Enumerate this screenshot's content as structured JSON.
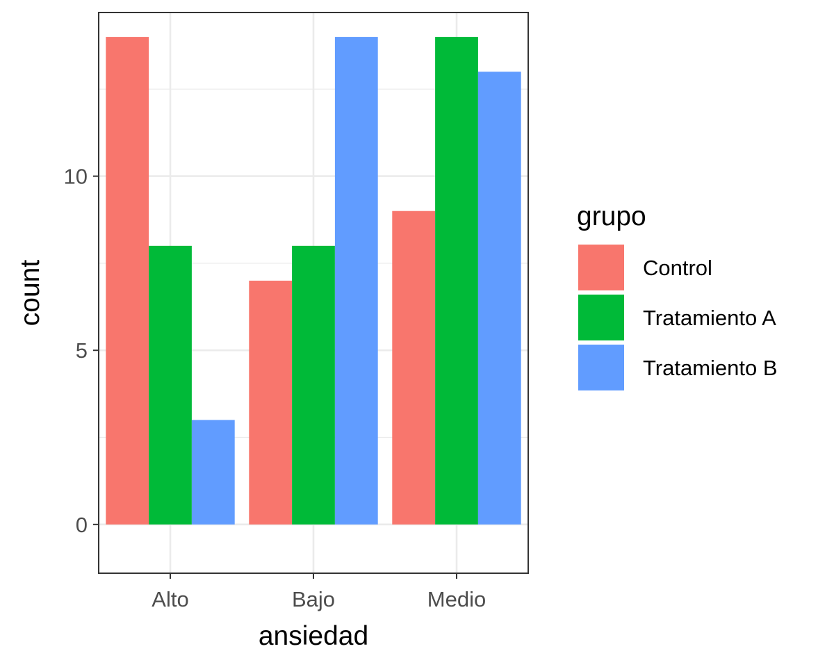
{
  "chart_data": {
    "type": "bar",
    "title": "",
    "xlabel": "ansiedad",
    "ylabel": "count",
    "categories": [
      "Alto",
      "Bajo",
      "Medio"
    ],
    "ylim": [
      -1.4,
      14.7
    ],
    "yticks": [
      0,
      5,
      10
    ],
    "grid": true,
    "legend_title": "grupo",
    "legend_position": "right",
    "series": [
      {
        "name": "Control",
        "color": "#F8766D",
        "values": [
          14,
          7,
          9
        ]
      },
      {
        "name": "Tratamiento A",
        "color": "#00BA38",
        "values": [
          8,
          8,
          14
        ]
      },
      {
        "name": "Tratamiento B",
        "color": "#619CFF",
        "values": [
          3,
          14,
          13
        ]
      }
    ]
  }
}
